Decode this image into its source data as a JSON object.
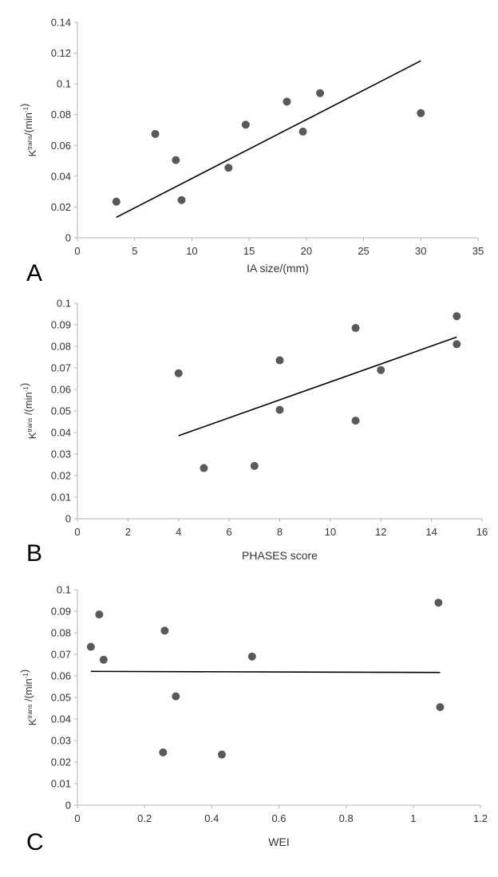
{
  "chart_data": [
    {
      "panel": "A",
      "type": "scatter",
      "xlabel": "IA size/(mm)",
      "ylabel": {
        "main": "K",
        "sup1": "trans",
        "mid": "/(min",
        "sup2": "-1",
        "end": ")"
      },
      "xlim": [
        0,
        35
      ],
      "ylim": [
        0,
        0.14
      ],
      "xticks": [
        0,
        5,
        10,
        15,
        20,
        25,
        30,
        35
      ],
      "yticks": [
        0,
        0.02,
        0.04,
        0.06,
        0.08,
        0.1,
        0.12,
        0.14
      ],
      "xtick_labels": [
        "0",
        "5",
        "10",
        "15",
        "20",
        "25",
        "30",
        "35"
      ],
      "ytick_labels": [
        "0",
        "0.02",
        "0.04",
        "0.06",
        "0.08",
        "0.1",
        "0.12",
        "0.14"
      ],
      "points": [
        [
          3.4,
          0.0235
        ],
        [
          6.8,
          0.0675
        ],
        [
          8.6,
          0.0505
        ],
        [
          9.1,
          0.0245
        ],
        [
          13.2,
          0.0455
        ],
        [
          14.7,
          0.0735
        ],
        [
          18.3,
          0.0885
        ],
        [
          19.7,
          0.069
        ],
        [
          21.2,
          0.094
        ],
        [
          30.0,
          0.081
        ]
      ],
      "trendline": [
        [
          3.4,
          0.0133
        ],
        [
          30.0,
          0.115
        ]
      ],
      "grid": false,
      "marker_color": "#595959",
      "line_color": "#000000"
    },
    {
      "panel": "B",
      "type": "scatter",
      "xlabel": "PHASES score",
      "ylabel": {
        "main": "K",
        "sup1": "trans",
        "mid": " /(min",
        "sup2": "-1",
        "end": ")"
      },
      "xlim": [
        0,
        16
      ],
      "ylim": [
        0,
        0.1
      ],
      "xticks": [
        0,
        2,
        4,
        6,
        8,
        10,
        12,
        14,
        16
      ],
      "yticks": [
        0,
        0.01,
        0.02,
        0.03,
        0.04,
        0.05,
        0.06,
        0.07,
        0.08,
        0.09,
        0.1
      ],
      "xtick_labels": [
        "0",
        "2",
        "4",
        "6",
        "8",
        "10",
        "12",
        "14",
        "16"
      ],
      "ytick_labels": [
        "0",
        "0.01",
        "0.02",
        "0.03",
        "0.04",
        "0.05",
        "0.06",
        "0.07",
        "0.08",
        "0.09",
        "0.1"
      ],
      "points": [
        [
          4,
          0.0675
        ],
        [
          5,
          0.0235
        ],
        [
          7,
          0.0245
        ],
        [
          8,
          0.0735
        ],
        [
          8,
          0.0505
        ],
        [
          11,
          0.0885
        ],
        [
          11,
          0.0455
        ],
        [
          12,
          0.069
        ],
        [
          15,
          0.094
        ],
        [
          15,
          0.081
        ]
      ],
      "trendline": [
        [
          4,
          0.0385
        ],
        [
          15,
          0.0843
        ]
      ],
      "grid": false,
      "marker_color": "#595959",
      "line_color": "#000000"
    },
    {
      "panel": "C",
      "type": "scatter",
      "xlabel": "WEI",
      "ylabel": {
        "main": "K",
        "sup1": "trans",
        "mid": " /(min",
        "sup2": "-1",
        "end": ")"
      },
      "xlim": [
        0,
        1.2
      ],
      "ylim": [
        0,
        0.1
      ],
      "xticks": [
        0,
        0.2,
        0.4,
        0.6,
        0.8,
        1,
        1.2
      ],
      "yticks": [
        0,
        0.01,
        0.02,
        0.03,
        0.04,
        0.05,
        0.06,
        0.07,
        0.08,
        0.09,
        0.1
      ],
      "xtick_labels": [
        "0",
        "0.2",
        "0.4",
        "0.6",
        "0.8",
        "1",
        "1.2"
      ],
      "ytick_labels": [
        "0",
        "0.01",
        "0.02",
        "0.03",
        "0.04",
        "0.05",
        "0.06",
        "0.07",
        "0.08",
        "0.09",
        "0.1"
      ],
      "points": [
        [
          0.04,
          0.0735
        ],
        [
          0.065,
          0.0885
        ],
        [
          0.078,
          0.0675
        ],
        [
          0.26,
          0.081
        ],
        [
          0.255,
          0.0245
        ],
        [
          0.293,
          0.0505
        ],
        [
          0.43,
          0.0235
        ],
        [
          0.52,
          0.069
        ],
        [
          1.075,
          0.094
        ],
        [
          1.08,
          0.0455
        ]
      ],
      "trendline": [
        [
          0.04,
          0.0621
        ],
        [
          1.08,
          0.0616
        ]
      ],
      "grid": false,
      "marker_color": "#595959",
      "line_color": "#000000"
    }
  ]
}
